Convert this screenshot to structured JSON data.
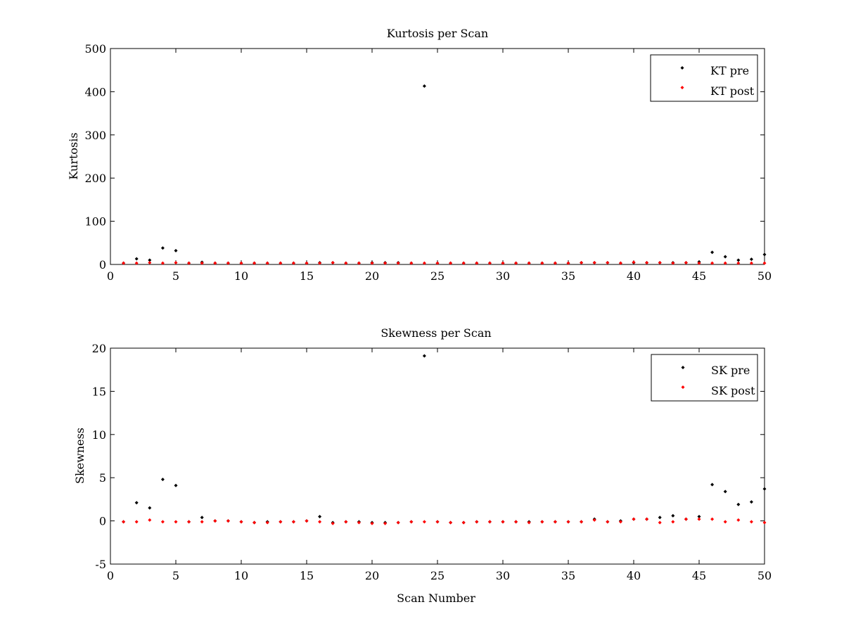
{
  "chart_data": [
    {
      "type": "scatter",
      "title": "Kurtosis per Scan",
      "xlabel": "",
      "ylabel": "Kurtosis",
      "xlim": [
        0,
        50
      ],
      "ylim": [
        0,
        500
      ],
      "xticks": [
        "0",
        "5",
        "10",
        "15",
        "20",
        "25",
        "30",
        "35",
        "40",
        "45",
        "50"
      ],
      "yticks": [
        "0",
        "100",
        "200",
        "300",
        "400",
        "500"
      ],
      "xtick_values": [
        0,
        5,
        10,
        15,
        20,
        25,
        30,
        35,
        40,
        45,
        50
      ],
      "ytick_values": [
        0,
        100,
        200,
        300,
        400,
        500
      ],
      "legend_position": "top-right",
      "grid": false,
      "series": [
        {
          "name": "KT pre",
          "color": "#000000",
          "x": [
            1,
            2,
            3,
            4,
            5,
            6,
            7,
            8,
            9,
            10,
            11,
            12,
            13,
            14,
            15,
            16,
            17,
            18,
            19,
            20,
            21,
            22,
            23,
            24,
            25,
            26,
            27,
            28,
            29,
            30,
            31,
            32,
            33,
            34,
            35,
            36,
            37,
            38,
            39,
            40,
            41,
            42,
            43,
            44,
            45,
            46,
            47,
            48,
            49,
            50
          ],
          "y": [
            3,
            13,
            10,
            38,
            32,
            3,
            5,
            3,
            3,
            3,
            3,
            3,
            3,
            3,
            3,
            4,
            4,
            3,
            3,
            4,
            4,
            4,
            3,
            413,
            3,
            3,
            3,
            3,
            3,
            3,
            3,
            3,
            3,
            3,
            3,
            4,
            4,
            4,
            3,
            4,
            4,
            4,
            4,
            4,
            6,
            28,
            18,
            10,
            12,
            23
          ]
        },
        {
          "name": "KT post",
          "color": "#ff0000",
          "x": [
            1,
            2,
            3,
            4,
            5,
            6,
            7,
            8,
            9,
            10,
            11,
            12,
            13,
            14,
            15,
            16,
            17,
            18,
            19,
            20,
            21,
            22,
            23,
            24,
            25,
            26,
            27,
            28,
            29,
            30,
            31,
            32,
            33,
            34,
            35,
            36,
            37,
            38,
            39,
            40,
            41,
            42,
            43,
            44,
            45,
            46,
            47,
            48,
            49,
            50
          ],
          "y": [
            3,
            3,
            4,
            3,
            4,
            3,
            3,
            3,
            3,
            3,
            3,
            3,
            3,
            3,
            3,
            3,
            4,
            3,
            3,
            3,
            3,
            3,
            3,
            3,
            3,
            3,
            3,
            3,
            3,
            3,
            3,
            3,
            3,
            3,
            3,
            4,
            4,
            4,
            3,
            5,
            4,
            4,
            3,
            4,
            3,
            3,
            3,
            3,
            3,
            3
          ]
        }
      ]
    },
    {
      "type": "scatter",
      "title": "Skewness per Scan",
      "xlabel": "Scan Number",
      "ylabel": "Skewness",
      "xlim": [
        0,
        50
      ],
      "ylim": [
        -5,
        20
      ],
      "xticks": [
        "0",
        "5",
        "10",
        "15",
        "20",
        "25",
        "30",
        "35",
        "40",
        "45",
        "50"
      ],
      "yticks": [
        "-5",
        "0",
        "5",
        "10",
        "15",
        "20"
      ],
      "xtick_values": [
        0,
        5,
        10,
        15,
        20,
        25,
        30,
        35,
        40,
        45,
        50
      ],
      "ytick_values": [
        -5,
        0,
        5,
        10,
        15,
        20
      ],
      "legend_position": "top-right",
      "grid": false,
      "series": [
        {
          "name": "SK pre",
          "color": "#000000",
          "x": [
            1,
            2,
            3,
            4,
            5,
            6,
            7,
            8,
            9,
            10,
            11,
            12,
            13,
            14,
            15,
            16,
            17,
            18,
            19,
            20,
            21,
            22,
            23,
            24,
            25,
            26,
            27,
            28,
            29,
            30,
            31,
            32,
            33,
            34,
            35,
            36,
            37,
            38,
            39,
            40,
            41,
            42,
            43,
            44,
            45,
            46,
            47,
            48,
            49,
            50
          ],
          "y": [
            -0.1,
            2.1,
            1.5,
            4.8,
            4.1,
            -0.1,
            0.4,
            0,
            0,
            -0.1,
            -0.2,
            -0.1,
            -0.1,
            -0.1,
            0,
            0.5,
            -0.2,
            -0.1,
            -0.1,
            -0.2,
            -0.2,
            -0.2,
            -0.1,
            19.1,
            -0.1,
            -0.2,
            -0.2,
            -0.1,
            -0.1,
            -0.1,
            -0.1,
            -0.1,
            -0.1,
            -0.1,
            -0.1,
            -0.1,
            0.2,
            -0.1,
            0,
            0.2,
            0.2,
            0.4,
            0.6,
            0.2,
            0.5,
            4.2,
            3.4,
            1.9,
            2.2,
            3.7
          ]
        },
        {
          "name": "SK post",
          "color": "#ff0000",
          "x": [
            1,
            2,
            3,
            4,
            5,
            6,
            7,
            8,
            9,
            10,
            11,
            12,
            13,
            14,
            15,
            16,
            17,
            18,
            19,
            20,
            21,
            22,
            23,
            24,
            25,
            26,
            27,
            28,
            29,
            30,
            31,
            32,
            33,
            34,
            35,
            36,
            37,
            38,
            39,
            40,
            41,
            42,
            43,
            44,
            45,
            46,
            47,
            48,
            49,
            50
          ],
          "y": [
            -0.1,
            -0.1,
            0.1,
            -0.1,
            -0.1,
            -0.1,
            -0.1,
            0,
            0,
            -0.1,
            -0.2,
            -0.2,
            -0.1,
            -0.1,
            0,
            -0.1,
            -0.3,
            -0.1,
            -0.2,
            -0.3,
            -0.3,
            -0.2,
            -0.1,
            -0.1,
            -0.1,
            -0.2,
            -0.2,
            -0.1,
            -0.1,
            -0.1,
            -0.1,
            -0.2,
            -0.1,
            -0.1,
            -0.1,
            -0.1,
            0.1,
            -0.1,
            -0.1,
            0.2,
            0.2,
            -0.2,
            -0.1,
            0.2,
            0.2,
            0.2,
            -0.1,
            0.1,
            -0.1,
            -0.2
          ]
        }
      ]
    }
  ]
}
